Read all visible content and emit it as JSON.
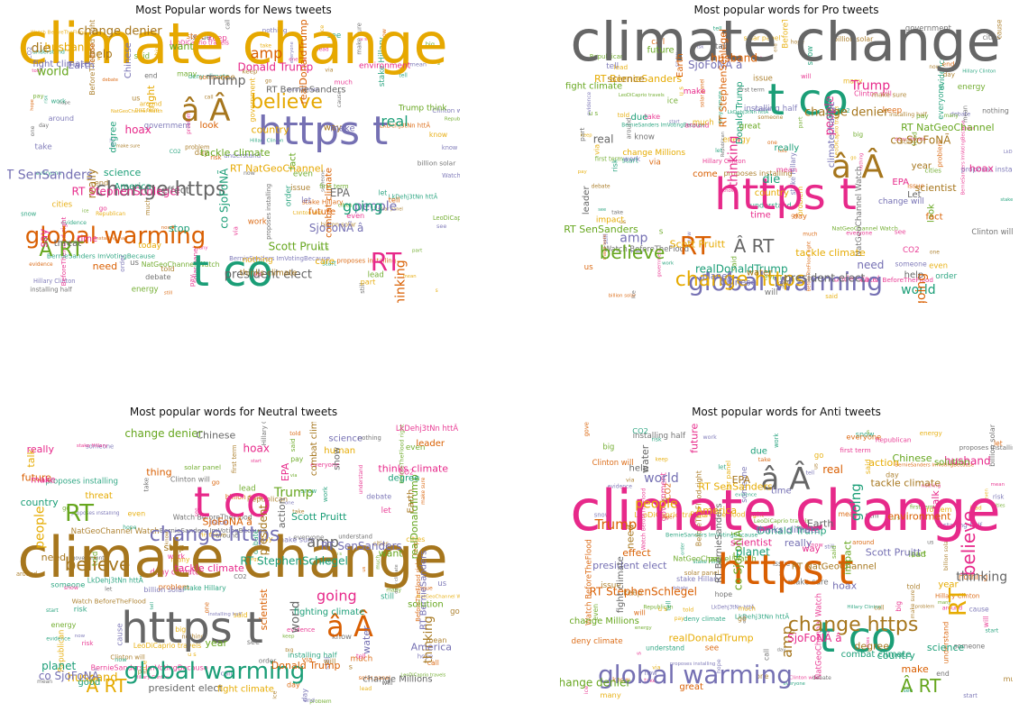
{
  "colors": {
    "news": [
      "#e6a800",
      "#7570b3",
      "#1b9e77",
      "#d95f02",
      "#666666",
      "#a6761d",
      "#e7298a",
      "#66a61e"
    ],
    "pro": [
      "#666666",
      "#e7298a",
      "#1b9e77",
      "#7570b3",
      "#a6761d",
      "#d95f02",
      "#e6ab02",
      "#66a61e"
    ],
    "neutral": [
      "#a6761d",
      "#666666",
      "#e7298a",
      "#1b9e77",
      "#7570b3",
      "#d95f02",
      "#66a61e",
      "#e6ab02"
    ],
    "anti": [
      "#e7298a",
      "#d95f02",
      "#1b9e77",
      "#7570b3",
      "#666666",
      "#a6761d",
      "#e6ab02",
      "#66a61e"
    ]
  },
  "panels": [
    {
      "key": "news",
      "title": "Most Popular words for News tweets",
      "words": [
        [
          "climate change",
          62,
          "climate change"
        ],
        [
          "https t",
          44,
          ""
        ],
        [
          "t co",
          48,
          ""
        ],
        [
          "global warming",
          26,
          ""
        ],
        [
          "change https",
          22,
          ""
        ],
        [
          "â Â",
          34,
          ""
        ],
        [
          "RT",
          28,
          ""
        ],
        [
          "Â RT",
          22,
          ""
        ],
        [
          "believe",
          22,
          ""
        ],
        [
          "RT SenSanders",
          14,
          ""
        ],
        [
          "real",
          16,
          ""
        ],
        [
          "amp",
          16,
          ""
        ],
        [
          "Trump",
          14,
          ""
        ],
        [
          "die",
          14,
          ""
        ],
        [
          "Donald Trump",
          12,
          ""
        ],
        [
          "Scott Pruitt",
          12,
          ""
        ],
        [
          "RT NatGeoChannel",
          11,
          ""
        ],
        [
          "people",
          14,
          ""
        ],
        [
          "going",
          16,
          ""
        ],
        [
          "thinking",
          14,
          ""
        ],
        [
          "president elect",
          13,
          ""
        ],
        [
          "change denier",
          13,
          ""
        ],
        [
          "RT StephenSchlegel",
          12,
          ""
        ],
        [
          "world",
          13,
          ""
        ],
        [
          "husband",
          12,
          ""
        ],
        [
          "SjoFoNÃ â",
          12,
          ""
        ],
        [
          "co SjoFoNÃ",
          12,
          ""
        ],
        [
          "realDonaldTrump",
          11,
          ""
        ],
        [
          "EPA",
          12,
          ""
        ],
        [
          "really",
          12,
          ""
        ],
        [
          "hoax",
          12,
          ""
        ],
        [
          "tackle climate",
          11,
          ""
        ],
        [
          "right",
          11,
          ""
        ],
        [
          "fight climate",
          10,
          ""
        ],
        [
          "science",
          11,
          ""
        ],
        [
          "need",
          11,
          ""
        ],
        [
          "effect",
          11,
          ""
        ],
        [
          "help",
          12,
          ""
        ],
        [
          "say",
          12,
          ""
        ],
        [
          "want",
          11,
          ""
        ],
        [
          "country",
          11,
          ""
        ],
        [
          "Earth",
          11,
          ""
        ],
        [
          "stop",
          11,
          ""
        ],
        [
          "combat climate",
          10,
          ""
        ],
        [
          "RT BernieSanders",
          10,
          ""
        ],
        [
          "thinks climate",
          9,
          ""
        ],
        [
          "environment",
          9,
          ""
        ],
        [
          "Trump think",
          9,
          ""
        ],
        [
          "today",
          9,
          ""
        ],
        [
          "Chinese",
          10,
          ""
        ],
        [
          "America",
          10,
          ""
        ],
        [
          "future",
          10,
          ""
        ],
        [
          "threat",
          10,
          ""
        ],
        [
          "way",
          10,
          ""
        ],
        [
          "time",
          10,
          ""
        ],
        [
          "fact",
          10,
          ""
        ],
        [
          "care",
          10,
          ""
        ],
        [
          "make",
          10,
          ""
        ],
        [
          "degree",
          10,
          ""
        ],
        [
          "look",
          10,
          ""
        ]
      ]
    },
    {
      "key": "pro",
      "title": "Most popular words for Pro tweets",
      "words": [
        [
          "climate change",
          62,
          ""
        ],
        [
          "https t",
          48,
          ""
        ],
        [
          "t co",
          48,
          ""
        ],
        [
          "global warming",
          28,
          ""
        ],
        [
          "â Â",
          36,
          ""
        ],
        [
          "RT",
          28,
          ""
        ],
        [
          "change https",
          22,
          ""
        ],
        [
          "believe",
          20,
          ""
        ],
        [
          "Â RT",
          20,
          ""
        ],
        [
          "thinking",
          14,
          ""
        ],
        [
          "world",
          14,
          ""
        ],
        [
          "amp",
          14,
          ""
        ],
        [
          "change denier",
          13,
          ""
        ],
        [
          "going",
          14,
          ""
        ],
        [
          "RT BernieSanders",
          11,
          ""
        ],
        [
          "RT NatGeoChannel",
          11,
          ""
        ],
        [
          "president elect",
          12,
          ""
        ],
        [
          "people",
          13,
          ""
        ],
        [
          "realDonaldTrump",
          12,
          ""
        ],
        [
          "SjoFoNÃ â",
          12,
          ""
        ],
        [
          "co SjoFoNÃ",
          12,
          ""
        ],
        [
          "RT StephenSchlegel",
          11,
          ""
        ],
        [
          "Scott Pruitt",
          11,
          ""
        ],
        [
          "RT SenSanders",
          11,
          ""
        ],
        [
          "real",
          12,
          ""
        ],
        [
          "Trump",
          14,
          ""
        ],
        [
          "die",
          13,
          ""
        ],
        [
          "need",
          12,
          ""
        ],
        [
          "scientist",
          11,
          ""
        ],
        [
          "husband",
          12,
          ""
        ],
        [
          "tackle climate",
          11,
          ""
        ],
        [
          "fight climate",
          10,
          ""
        ],
        [
          "leader",
          10,
          ""
        ],
        [
          "hoax",
          11,
          ""
        ],
        [
          "Donald Trump",
          10,
          ""
        ],
        [
          "climatechange",
          10,
          ""
        ],
        [
          "science",
          11,
          ""
        ],
        [
          "Earth",
          10,
          ""
        ],
        [
          "country",
          10,
          ""
        ],
        [
          "future",
          10,
          ""
        ],
        [
          "help",
          10,
          ""
        ],
        [
          "EPA",
          10,
          ""
        ],
        [
          "really",
          10,
          ""
        ],
        [
          "Chinese",
          10,
          ""
        ],
        [
          "year",
          10,
          ""
        ],
        [
          "come",
          10,
          ""
        ],
        [
          "change Millions",
          9,
          ""
        ],
        [
          "look",
          10,
          ""
        ],
        [
          "Let",
          10,
          ""
        ],
        [
          "time",
          10,
          ""
        ],
        [
          "due",
          10,
          ""
        ],
        [
          "planet",
          10,
          ""
        ],
        [
          "water",
          10,
          ""
        ],
        [
          "fact",
          10,
          ""
        ],
        [
          "impact",
          9,
          ""
        ],
        [
          "great",
          9,
          ""
        ],
        [
          "talk",
          9,
          ""
        ],
        [
          "make",
          9,
          ""
        ],
        [
          "show",
          9,
          ""
        ],
        [
          "change will",
          9,
          ""
        ]
      ]
    },
    {
      "key": "neutral",
      "title": "Most popular words for Neutral tweets",
      "words": [
        [
          "climate change",
          62,
          ""
        ],
        [
          "https t",
          48,
          ""
        ],
        [
          "t co",
          46,
          ""
        ],
        [
          "global warming",
          26,
          ""
        ],
        [
          "change https",
          22,
          ""
        ],
        [
          "â Â",
          32,
          ""
        ],
        [
          "RT",
          26,
          ""
        ],
        [
          "Â RT",
          20,
          ""
        ],
        [
          "believe",
          20,
          ""
        ],
        [
          "amp",
          16,
          ""
        ],
        [
          "going",
          16,
          ""
        ],
        [
          "RT StephenSchlegel",
          12,
          ""
        ],
        [
          "RT SenSanders",
          12,
          ""
        ],
        [
          "Donald Trump",
          11,
          ""
        ],
        [
          "Trump",
          14,
          ""
        ],
        [
          "husband",
          13,
          ""
        ],
        [
          "president",
          12,
          ""
        ],
        [
          "president elect",
          11,
          ""
        ],
        [
          "thinks climate",
          11,
          ""
        ],
        [
          "Scott Pruitt",
          11,
          ""
        ],
        [
          "co SjoFoNÃ",
          12,
          ""
        ],
        [
          "SjoFoNÃ â",
          11,
          ""
        ],
        [
          "change denier",
          12,
          ""
        ],
        [
          "people",
          14,
          ""
        ],
        [
          "thinking",
          13,
          ""
        ],
        [
          "world",
          13,
          ""
        ],
        [
          "tackle climate",
          11,
          ""
        ],
        [
          "fighting climate",
          10,
          ""
        ],
        [
          "RT BernieSanders",
          10,
          ""
        ],
        [
          "scientist",
          11,
          ""
        ],
        [
          "realDonaldTrump",
          11,
          ""
        ],
        [
          "fight climate",
          10,
          ""
        ],
        [
          "combat climate",
          10,
          ""
        ],
        [
          "change Millions",
          10,
          ""
        ],
        [
          "hoax",
          12,
          ""
        ],
        [
          "planet",
          12,
          ""
        ],
        [
          "water",
          11,
          ""
        ],
        [
          "thing",
          11,
          ""
        ],
        [
          "want",
          11,
          ""
        ],
        [
          "talk",
          11,
          ""
        ],
        [
          "need",
          11,
          ""
        ],
        [
          "Chinese",
          11,
          ""
        ],
        [
          "EPA",
          11,
          ""
        ],
        [
          "country",
          11,
          ""
        ],
        [
          "America",
          11,
          ""
        ],
        [
          "future",
          11,
          ""
        ],
        [
          "year",
          11,
          ""
        ],
        [
          "human",
          10,
          ""
        ],
        [
          "stop",
          11,
          ""
        ],
        [
          "action",
          11,
          ""
        ],
        [
          "really",
          11,
          ""
        ],
        [
          "degree",
          10,
          ""
        ],
        [
          "science",
          10,
          ""
        ],
        [
          "leader",
          10,
          ""
        ],
        [
          "solution",
          10,
          ""
        ],
        [
          "threat",
          10,
          ""
        ],
        [
          "Earth",
          10,
          ""
        ],
        [
          "show",
          10,
          ""
        ],
        [
          "make",
          10,
          ""
        ],
        [
          "good",
          10,
          ""
        ]
      ]
    },
    {
      "key": "anti",
      "title": "Most popular words for Anti tweets",
      "words": [
        [
          "climate change",
          62,
          ""
        ],
        [
          "https t",
          46,
          ""
        ],
        [
          "t co",
          46,
          ""
        ],
        [
          "global warming",
          28,
          ""
        ],
        [
          "â Â",
          34,
          ""
        ],
        [
          "change https",
          22,
          ""
        ],
        [
          "RT",
          26,
          ""
        ],
        [
          "Â RT",
          20,
          ""
        ],
        [
          "believe",
          20,
          ""
        ],
        [
          "Trump",
          15,
          ""
        ],
        [
          "going",
          15,
          ""
        ],
        [
          "world",
          14,
          ""
        ],
        [
          "thinking",
          14,
          ""
        ],
        [
          "amp",
          16,
          ""
        ],
        [
          "people",
          14,
          ""
        ],
        [
          "co SjoFoNÃ",
          12,
          ""
        ],
        [
          "SjoFoNÃ â",
          12,
          ""
        ],
        [
          "RT StephenSchlegel",
          12,
          ""
        ],
        [
          "Donald Trump",
          11,
          ""
        ],
        [
          "president elect",
          11,
          ""
        ],
        [
          "RT BernieSanders",
          10,
          ""
        ],
        [
          "RT NatGeoChannel",
          10,
          ""
        ],
        [
          "RT SenSanders",
          11,
          ""
        ],
        [
          "change denier",
          12,
          ""
        ],
        [
          "husband",
          12,
          ""
        ],
        [
          "real",
          12,
          ""
        ],
        [
          "planet",
          12,
          ""
        ],
        [
          "Scott Pruitt",
          11,
          ""
        ],
        [
          "fight climate",
          10,
          ""
        ],
        [
          "tackle climate",
          11,
          ""
        ],
        [
          "realDonaldTrump",
          11,
          ""
        ],
        [
          "change Millions",
          10,
          ""
        ],
        [
          "scientist",
          11,
          ""
        ],
        [
          "environment",
          11,
          ""
        ],
        [
          "combat climate",
          10,
          ""
        ],
        [
          "thinks climate",
          10,
          ""
        ],
        [
          "Earth",
          11,
          ""
        ],
        [
          "EPA",
          11,
          ""
        ],
        [
          "America",
          11,
          ""
        ],
        [
          "Chinese",
          11,
          ""
        ],
        [
          "future",
          11,
          ""
        ],
        [
          "effect",
          11,
          ""
        ],
        [
          "country",
          11,
          ""
        ],
        [
          "hoax",
          11,
          ""
        ],
        [
          "water",
          11,
          ""
        ],
        [
          "degree",
          11,
          ""
        ],
        [
          "action",
          11,
          ""
        ],
        [
          "impact",
          11,
          ""
        ],
        [
          "talk",
          11,
          ""
        ],
        [
          "make",
          11,
          ""
        ],
        [
          "science",
          11,
          ""
        ],
        [
          "really",
          11,
          ""
        ],
        [
          "help",
          10,
          ""
        ],
        [
          "need",
          11,
          ""
        ],
        [
          "year",
          10,
          ""
        ],
        [
          "solution",
          10,
          ""
        ],
        [
          "way",
          10,
          ""
        ],
        [
          "great",
          10,
          ""
        ],
        [
          "due",
          10,
          ""
        ],
        [
          "time",
          10,
          ""
        ]
      ]
    }
  ],
  "small_words": [
    "mean",
    "deny climate",
    "evidence",
    "someone",
    "issue",
    "problem",
    "lead",
    "first term",
    "Clinton will",
    "Hillary Clinton",
    "stake Hillary",
    "installing half",
    "make sure",
    "BeforeTheFlood right",
    "LeoDiCaprio travels",
    "NatGeoChannel Watch",
    "Watch BeforeTheFlood",
    "BernieSanders ImVotingBecause",
    "LkDehj3tNn httÃ",
    "proposes installing",
    "billion solar",
    "solar panel",
    "energy",
    "Republican",
    "government",
    "CO2",
    "snow",
    "still",
    "end",
    "told",
    "said",
    "cities",
    "around",
    "understand",
    "start",
    "debate",
    "call",
    "keep",
    "pay",
    "part",
    "nothing",
    "order",
    "risk",
    "hope",
    "day",
    "much",
    "many",
    "ice",
    "know",
    "see",
    "tell",
    "now",
    "one",
    "go",
    "u s",
    "s",
    "take",
    "let",
    "work",
    "cause",
    "us",
    "via",
    "even",
    "big",
    "will",
    "everyone"
  ]
}
